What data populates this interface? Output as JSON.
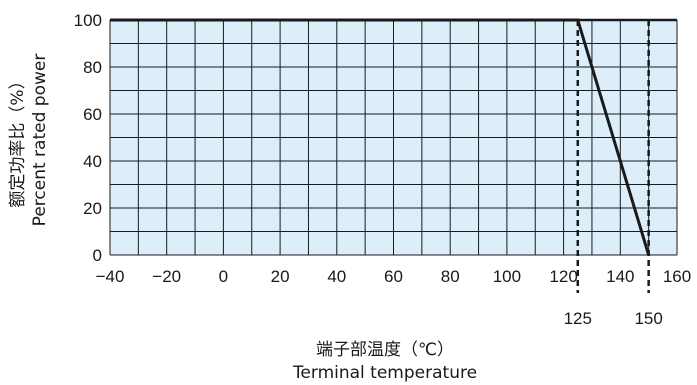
{
  "chart_data": {
    "type": "line",
    "x_ticks": [
      -40,
      -20,
      0,
      20,
      40,
      60,
      80,
      100,
      120,
      140,
      160
    ],
    "y_ticks": [
      0,
      20,
      40,
      60,
      80,
      100
    ],
    "xlim": [
      -40,
      160
    ],
    "ylim": [
      0,
      100
    ],
    "x_minor_step": 10,
    "y_minor_step": 10,
    "grid": true,
    "series": [
      {
        "x": [
          -40,
          125,
          150
        ],
        "y": [
          100,
          100,
          0
        ]
      }
    ],
    "annotations": [
      {
        "label": "125",
        "x": 125
      },
      {
        "label": "150",
        "x": 150
      }
    ],
    "xlabel": [
      "端子部温度（℃）",
      "Terminal temperature"
    ],
    "ylabel": [
      "额定功率比（%）",
      "Percent rated power"
    ],
    "colors": {
      "plot_fill": "#dceefa",
      "grid": "#1a1a1a",
      "line": "#1a1a1a"
    }
  }
}
